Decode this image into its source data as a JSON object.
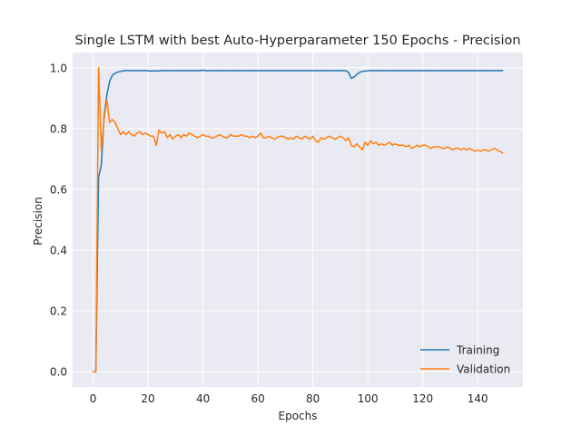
{
  "chart_data": {
    "type": "line",
    "title": "Single LSTM with best Auto-Hyperparameter 150 Epochs - Precision",
    "xlabel": "Epochs",
    "ylabel": "Precision",
    "xlim": [
      -7.45,
      156.45
    ],
    "ylim": [
      -0.05,
      1.05
    ],
    "xticks": [
      0,
      20,
      40,
      60,
      80,
      100,
      120,
      140
    ],
    "yticks": [
      0.0,
      0.2,
      0.4,
      0.6,
      0.8,
      1.0
    ],
    "xtick_labels": [
      "0",
      "20",
      "40",
      "60",
      "80",
      "100",
      "120",
      "140"
    ],
    "ytick_labels": [
      "0.0",
      "0.2",
      "0.4",
      "0.6",
      "0.8",
      "1.0"
    ],
    "grid": true,
    "legend_position": "lower-right",
    "series": [
      {
        "name": "Training",
        "color": "#1f77b4",
        "values": [
          0.0,
          0.0,
          0.64,
          0.68,
          0.84,
          0.91,
          0.955,
          0.975,
          0.982,
          0.986,
          0.988,
          0.99,
          0.991,
          0.991,
          0.99,
          0.991,
          0.99,
          0.991,
          0.99,
          0.991,
          0.99,
          0.989,
          0.99,
          0.989,
          0.99,
          0.991,
          0.99,
          0.991,
          0.99,
          0.991,
          0.99,
          0.991,
          0.99,
          0.991,
          0.99,
          0.991,
          0.99,
          0.991,
          0.99,
          0.991,
          0.992,
          0.991,
          0.99,
          0.991,
          0.99,
          0.991,
          0.99,
          0.991,
          0.99,
          0.991,
          0.99,
          0.991,
          0.99,
          0.991,
          0.99,
          0.991,
          0.99,
          0.991,
          0.99,
          0.991,
          0.99,
          0.991,
          0.99,
          0.991,
          0.99,
          0.991,
          0.99,
          0.991,
          0.99,
          0.991,
          0.99,
          0.991,
          0.99,
          0.991,
          0.99,
          0.991,
          0.99,
          0.991,
          0.99,
          0.991,
          0.99,
          0.991,
          0.99,
          0.991,
          0.99,
          0.991,
          0.99,
          0.991,
          0.99,
          0.991,
          0.99,
          0.991,
          0.99,
          0.985,
          0.965,
          0.97,
          0.978,
          0.985,
          0.988,
          0.989,
          0.99,
          0.991,
          0.99,
          0.991,
          0.99,
          0.991,
          0.99,
          0.991,
          0.99,
          0.991,
          0.99,
          0.991,
          0.99,
          0.991,
          0.99,
          0.991,
          0.99,
          0.991,
          0.99,
          0.991,
          0.99,
          0.991,
          0.99,
          0.991,
          0.99,
          0.991,
          0.99,
          0.991,
          0.99,
          0.991,
          0.99,
          0.991,
          0.99,
          0.991,
          0.99,
          0.991,
          0.99,
          0.991,
          0.99,
          0.991,
          0.99,
          0.991,
          0.99,
          0.991,
          0.99,
          0.991,
          0.99,
          0.991,
          0.99,
          0.991
        ]
      },
      {
        "name": "Validation",
        "color": "#ff7f0e",
        "values": [
          0.0,
          0.0,
          1.0,
          0.73,
          0.83,
          0.895,
          0.82,
          0.83,
          0.82,
          0.8,
          0.78,
          0.79,
          0.78,
          0.79,
          0.78,
          0.775,
          0.785,
          0.79,
          0.78,
          0.785,
          0.78,
          0.775,
          0.775,
          0.745,
          0.795,
          0.785,
          0.79,
          0.77,
          0.78,
          0.765,
          0.775,
          0.78,
          0.77,
          0.78,
          0.775,
          0.785,
          0.78,
          0.775,
          0.77,
          0.775,
          0.78,
          0.775,
          0.775,
          0.77,
          0.77,
          0.775,
          0.78,
          0.775,
          0.77,
          0.77,
          0.78,
          0.775,
          0.775,
          0.775,
          0.78,
          0.775,
          0.775,
          0.77,
          0.775,
          0.77,
          0.775,
          0.785,
          0.77,
          0.77,
          0.775,
          0.77,
          0.765,
          0.77,
          0.775,
          0.775,
          0.77,
          0.765,
          0.77,
          0.765,
          0.775,
          0.77,
          0.765,
          0.775,
          0.77,
          0.765,
          0.775,
          0.76,
          0.755,
          0.77,
          0.765,
          0.77,
          0.775,
          0.77,
          0.765,
          0.77,
          0.775,
          0.77,
          0.76,
          0.77,
          0.745,
          0.74,
          0.75,
          0.74,
          0.73,
          0.755,
          0.745,
          0.76,
          0.75,
          0.755,
          0.745,
          0.75,
          0.745,
          0.75,
          0.755,
          0.745,
          0.75,
          0.745,
          0.745,
          0.745,
          0.74,
          0.745,
          0.735,
          0.74,
          0.745,
          0.74,
          0.745,
          0.745,
          0.74,
          0.735,
          0.74,
          0.74,
          0.74,
          0.735,
          0.735,
          0.74,
          0.735,
          0.73,
          0.735,
          0.735,
          0.73,
          0.735,
          0.73,
          0.735,
          0.73,
          0.725,
          0.73,
          0.725,
          0.73,
          0.73,
          0.725,
          0.73,
          0.735,
          0.73,
          0.725,
          0.72
        ]
      }
    ]
  }
}
